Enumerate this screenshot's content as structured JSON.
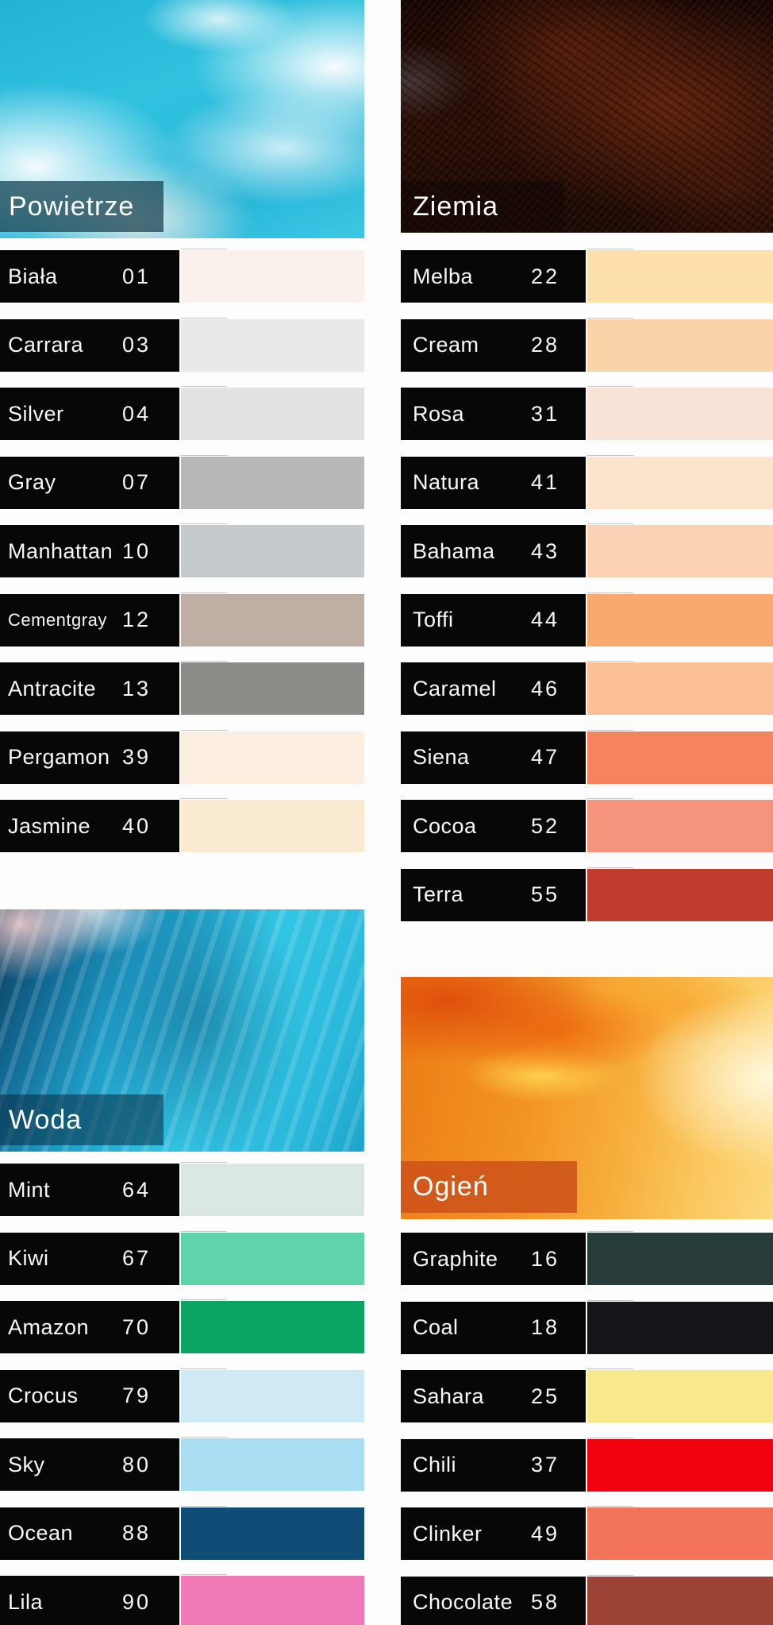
{
  "theme": {
    "bar_color": "#070707",
    "bar_text_color": "#f7f7f7",
    "background": "#fdfdfd"
  },
  "sections": [
    {
      "id": "powietrze",
      "label": "Powietrze",
      "hero": "sky-clouds-photo",
      "overlay": "rgba(31,74,88,0.78)",
      "rows": [
        {
          "name": "Biała",
          "code": "01",
          "hex": "#faf0ec"
        },
        {
          "name": "Carrara",
          "code": "03",
          "hex": "#e9e9e7"
        },
        {
          "name": "Silver",
          "code": "04",
          "hex": "#e2e2e0"
        },
        {
          "name": "Gray",
          "code": "07",
          "hex": "#b6b8b9"
        },
        {
          "name": "Manhattan",
          "code": "10",
          "hex": "#c5cbcc"
        },
        {
          "name": "Cementgray",
          "code": "12",
          "hex": "#bfaea4"
        },
        {
          "name": "Antracite",
          "code": "13",
          "hex": "#8b8c87"
        },
        {
          "name": "Pergamon",
          "code": "39",
          "hex": "#fbeee0"
        },
        {
          "name": "Jasmine",
          "code": "40",
          "hex": "#fbead2"
        }
      ]
    },
    {
      "id": "ziemia",
      "label": "Ziemia",
      "hero": "dark-earth-rock-photo",
      "overlay": "rgba(12,6,6,0.40)",
      "rows": [
        {
          "name": "Melba",
          "code": "22",
          "hex": "#fcdfa9"
        },
        {
          "name": "Cream",
          "code": "28",
          "hex": "#fbd3a9"
        },
        {
          "name": "Rosa",
          "code": "31",
          "hex": "#f9e2d6"
        },
        {
          "name": "Natura",
          "code": "41",
          "hex": "#fce3cb"
        },
        {
          "name": "Bahama",
          "code": "43",
          "hex": "#fcd2b4"
        },
        {
          "name": "Toffi",
          "code": "44",
          "hex": "#f8a970"
        },
        {
          "name": "Caramel",
          "code": "46",
          "hex": "#fbc194"
        },
        {
          "name": "Siena",
          "code": "47",
          "hex": "#f5845d"
        },
        {
          "name": "Cocoa",
          "code": "52",
          "hex": "#f4947c"
        },
        {
          "name": "Terra",
          "code": "55",
          "hex": "#c13c2c"
        }
      ]
    },
    {
      "id": "woda",
      "label": "Woda",
      "hero": "waterfall-photo",
      "overlay": "rgba(8,42,66,0.55)",
      "rows": [
        {
          "name": "Mint",
          "code": "64",
          "hex": "#d9e8e2"
        },
        {
          "name": "Kiwi",
          "code": "67",
          "hex": "#5fd4ab"
        },
        {
          "name": "Amazon",
          "code": "70",
          "hex": "#0ba465"
        },
        {
          "name": "Crocus",
          "code": "79",
          "hex": "#cfe9f5"
        },
        {
          "name": "Sky",
          "code": "80",
          "hex": "#a9ddf1"
        },
        {
          "name": "Ocean",
          "code": "88",
          "hex": "#104d76"
        },
        {
          "name": "Lila",
          "code": "90",
          "hex": "#f07ab8"
        }
      ]
    },
    {
      "id": "ogien",
      "label": "Ogień",
      "hero": "sunset-fire-sky-photo",
      "overlay": "rgba(206,84,26,0.90)",
      "rows": [
        {
          "name": "Graphite",
          "code": "16",
          "hex": "#273b3a"
        },
        {
          "name": "Coal",
          "code": "18",
          "hex": "#131518"
        },
        {
          "name": "Sahara",
          "code": "25",
          "hex": "#f9e98d"
        },
        {
          "name": "Chili",
          "code": "37",
          "hex": "#f1000f"
        },
        {
          "name": "Clinker",
          "code": "49",
          "hex": "#f4735b"
        },
        {
          "name": "Chocolate",
          "code": "58",
          "hex": "#9c4336"
        }
      ]
    }
  ]
}
